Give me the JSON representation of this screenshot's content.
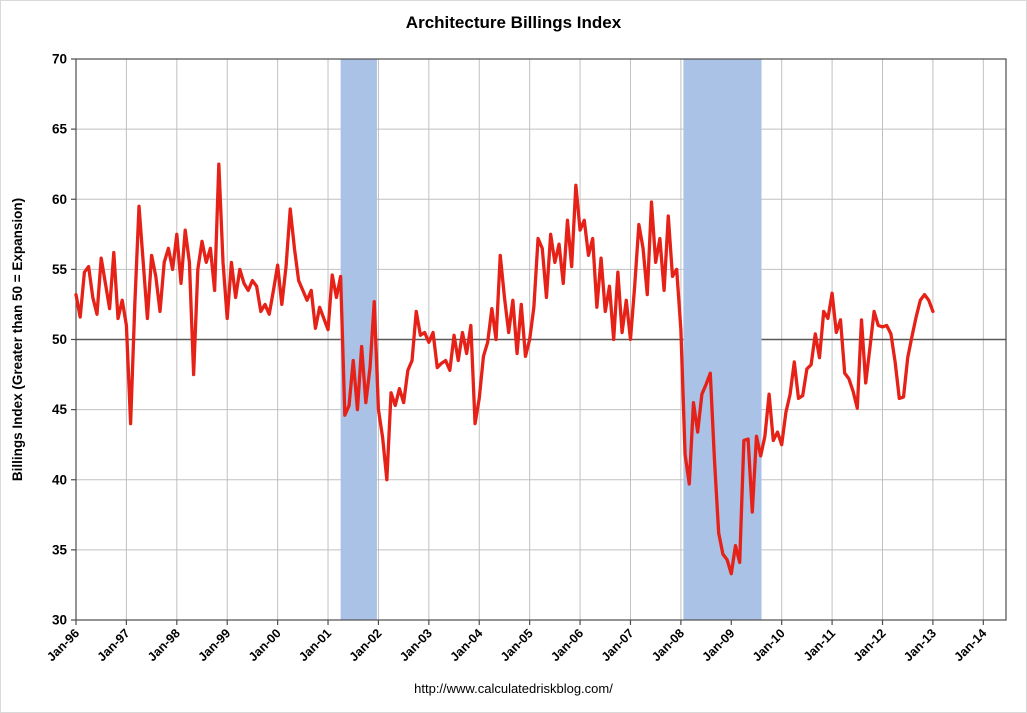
{
  "chart_data": {
    "type": "line",
    "title": "Architecture Billings Index",
    "ylabel": "Billings Index (Greater than 50 = Expansion)",
    "footer": "http://www.calculatedriskblog.com/",
    "xlim": [
      1996,
      2014.45
    ],
    "ylim": [
      30,
      70
    ],
    "ytick_step": 5,
    "x_tick_labels": [
      "Jan-96",
      "Jan-97",
      "Jan-98",
      "Jan-99",
      "Jan-00",
      "Jan-01",
      "Jan-02",
      "Jan-03",
      "Jan-04",
      "Jan-05",
      "Jan-06",
      "Jan-07",
      "Jan-08",
      "Jan-09",
      "Jan-10",
      "Jan-11",
      "Jan-12",
      "Jan-13",
      "Jan-14"
    ],
    "x_tick_years": [
      1996,
      1997,
      1998,
      1999,
      2000,
      2001,
      2002,
      2003,
      2004,
      2005,
      2006,
      2007,
      2008,
      2009,
      2010,
      2011,
      2012,
      2013,
      2014
    ],
    "reference_line": 50,
    "grid": true,
    "legend": "none",
    "recession_bands": [
      {
        "start": 2001.25,
        "end": 2001.97
      },
      {
        "start": 2008.05,
        "end": 2009.6
      }
    ],
    "colors": {
      "line": "#e62117",
      "band": "#a9c2e6",
      "grid": "#c0c0c0",
      "axis": "#4d4d4d",
      "reference": "#595959",
      "text": "#000000"
    },
    "series": [
      {
        "name": "Architecture Billings Index",
        "start": "Jan-1996",
        "frequency": "monthly",
        "values": [
          53.2,
          51.6,
          54.8,
          55.2,
          53.0,
          51.8,
          55.8,
          54.0,
          52.2,
          56.2,
          51.5,
          52.8,
          51.0,
          44.0,
          52.5,
          59.5,
          55.5,
          51.5,
          56.0,
          54.5,
          52.0,
          55.5,
          56.5,
          55.0,
          57.5,
          54.0,
          57.8,
          55.5,
          47.5,
          55.0,
          57.0,
          55.5,
          56.5,
          53.5,
          62.5,
          55.5,
          51.5,
          55.5,
          53.0,
          55.0,
          54.0,
          53.5,
          54.2,
          53.8,
          52.0,
          52.5,
          51.8,
          53.5,
          55.3,
          52.5,
          55.2,
          59.3,
          56.5,
          54.2,
          53.5,
          52.8,
          53.5,
          50.8,
          52.3,
          51.5,
          50.7,
          54.6,
          53.0,
          54.5,
          44.6,
          45.3,
          48.5,
          45.0,
          49.5,
          45.5,
          48.0,
          52.7,
          45.0,
          43.0,
          40.0,
          46.2,
          45.3,
          46.5,
          45.5,
          47.8,
          48.5,
          52.0,
          50.3,
          50.5,
          49.8,
          50.5,
          48.0,
          48.3,
          48.5,
          47.8,
          50.3,
          48.5,
          50.5,
          49.0,
          51.0,
          44.0,
          45.8,
          48.8,
          49.8,
          52.2,
          50.0,
          56.0,
          53.0,
          50.5,
          52.8,
          49.0,
          52.5,
          48.8,
          50.0,
          52.3,
          57.2,
          56.5,
          53.0,
          57.5,
          55.5,
          56.8,
          54.0,
          58.5,
          55.2,
          61.0,
          57.8,
          58.5,
          56.0,
          57.2,
          52.3,
          55.8,
          52.0,
          53.8,
          50.0,
          54.8,
          50.5,
          52.8,
          50.0,
          53.8,
          58.2,
          56.5,
          53.2,
          59.8,
          55.5,
          57.2,
          53.5,
          58.8,
          54.5,
          55.0,
          50.7,
          41.8,
          39.7,
          45.5,
          43.4,
          46.1,
          46.8,
          47.6,
          41.4,
          36.2,
          34.7,
          34.3,
          33.3,
          35.3,
          34.1,
          42.8,
          42.9,
          37.7,
          43.1,
          41.7,
          43.1,
          46.1,
          42.8,
          43.4,
          42.5,
          44.8,
          46.1,
          48.4,
          45.8,
          46.0,
          47.9,
          48.2,
          50.4,
          48.7,
          52.0,
          51.5,
          53.3,
          50.5,
          51.4,
          47.6,
          47.2,
          46.3,
          45.1,
          51.4,
          46.9,
          49.4,
          52.0,
          51.0,
          50.9,
          51.0,
          50.4,
          48.4,
          45.8,
          45.9,
          48.7,
          50.2,
          51.6,
          52.8,
          53.2,
          52.8,
          52.0
        ]
      }
    ]
  }
}
